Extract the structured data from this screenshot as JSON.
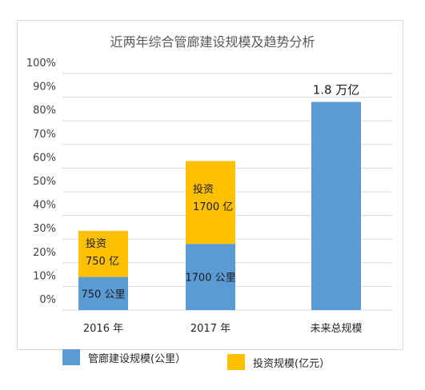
{
  "chart_data": {
    "type": "bar",
    "stacked": true,
    "title": "近两年综合管廊建设规模及趋势分析",
    "categories": [
      "2016 年",
      "2017 年",
      "未来总规模"
    ],
    "y_ticks": [
      "0%",
      "10%",
      "20%",
      "30%",
      "40%",
      "50%",
      "60%",
      "70%",
      "80%",
      "90%",
      "100%"
    ],
    "ylim": [
      0,
      100
    ],
    "grid": true,
    "series": [
      {
        "name": "管廊建设规模(公里）",
        "color": "#5b9bd5",
        "values": [
          14,
          28,
          88
        ]
      },
      {
        "name": "投资规模(亿元）",
        "color": "#ffc000",
        "values": [
          19.5,
          35,
          0
        ]
      }
    ],
    "data_labels": [
      {
        "text": "750 公里",
        "category": 0,
        "series": 0
      },
      {
        "text": "投资",
        "category": 0,
        "series": 1,
        "line": 0
      },
      {
        "text": "750 亿",
        "category": 0,
        "series": 1,
        "line": 1
      },
      {
        "text": "1700 公里",
        "category": 1,
        "series": 0
      },
      {
        "text": "投资",
        "category": 1,
        "series": 1,
        "line": 0
      },
      {
        "text": "1700 亿",
        "category": 1,
        "series": 1,
        "line": 1
      },
      {
        "text": "1.8 万亿",
        "category": 2,
        "series": 0,
        "above": true
      }
    ],
    "legend_position": "bottom"
  }
}
